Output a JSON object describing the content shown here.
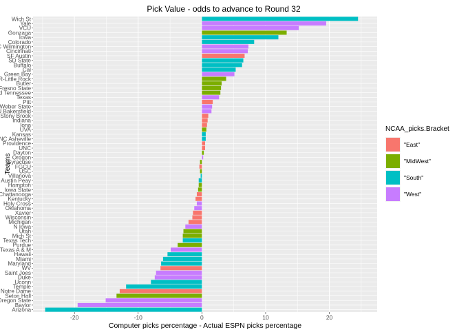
{
  "chart_data": {
    "type": "bar",
    "orientation": "horizontal",
    "title": "Pick Value - odds to advance to Round 32",
    "xlabel": "Computer picks percentage - Actual ESPN picks percentage",
    "ylabel": "Teams",
    "xlim": [
      -26.5,
      27.5
    ],
    "xticks": [
      -20,
      -10,
      0,
      10,
      20
    ],
    "xtick_labels": [
      "-20",
      "-10",
      "0",
      "10",
      "20"
    ],
    "grid": true,
    "legend": {
      "title": "NCAA_picks.Bracket",
      "placement": "right",
      "entries": [
        {
          "key": "East",
          "label": "\"East\"",
          "color": "#F8766D"
        },
        {
          "key": "MidWest",
          "label": "\"MidWest\"",
          "color": "#7CAE00"
        },
        {
          "key": "South",
          "label": "\"South\"",
          "color": "#00BFC4"
        },
        {
          "key": "West",
          "label": "\"West\"",
          "color": "#C77CFF"
        }
      ]
    },
    "bars": [
      {
        "team": "Wich St",
        "value": 24.5,
        "bracket": "South"
      },
      {
        "team": "Yale",
        "value": 19.5,
        "bracket": "West"
      },
      {
        "team": "VCU",
        "value": 15.2,
        "bracket": "West"
      },
      {
        "team": "Gonzaga",
        "value": 13.3,
        "bracket": "MidWest"
      },
      {
        "team": "Iowa",
        "value": 12.0,
        "bracket": "South"
      },
      {
        "team": "Colorado",
        "value": 8.2,
        "bracket": "South"
      },
      {
        "team": "UNC Wilmington",
        "value": 7.3,
        "bracket": "West"
      },
      {
        "team": "Cincinnati",
        "value": 7.2,
        "bracket": "West"
      },
      {
        "team": "SF Austin",
        "value": 6.7,
        "bracket": "East"
      },
      {
        "team": "SD State",
        "value": 6.5,
        "bracket": "South"
      },
      {
        "team": "Buffalo",
        "value": 6.3,
        "bracket": "South"
      },
      {
        "team": "Cal",
        "value": 5.3,
        "bracket": "South"
      },
      {
        "team": "Green Bay",
        "value": 5.1,
        "bracket": "West"
      },
      {
        "team": "AR-Little Rock",
        "value": 3.8,
        "bracket": "MidWest"
      },
      {
        "team": "Butler",
        "value": 3.1,
        "bracket": "MidWest"
      },
      {
        "team": "Fresno State",
        "value": 3.0,
        "bracket": "MidWest"
      },
      {
        "team": "Mid Tennessee",
        "value": 2.9,
        "bracket": "MidWest"
      },
      {
        "team": "Texas",
        "value": 2.7,
        "bracket": "West"
      },
      {
        "team": "Pitt",
        "value": 1.7,
        "bracket": "East"
      },
      {
        "team": "Weber State",
        "value": 1.6,
        "bracket": "West"
      },
      {
        "team": "CSU Bakersfield",
        "value": 1.5,
        "bracket": "West"
      },
      {
        "team": "Stony Brook",
        "value": 1.0,
        "bracket": "East"
      },
      {
        "team": "Indiana",
        "value": 0.9,
        "bracket": "East"
      },
      {
        "team": "Iona",
        "value": 0.8,
        "bracket": "East"
      },
      {
        "team": "UVA",
        "value": 0.7,
        "bracket": "MidWest"
      },
      {
        "team": "Kansas",
        "value": 0.6,
        "bracket": "South"
      },
      {
        "team": "UNC Asheville",
        "value": 0.6,
        "bracket": "South"
      },
      {
        "team": "Providence",
        "value": 0.5,
        "bracket": "East"
      },
      {
        "team": "UNC",
        "value": 0.5,
        "bracket": "East"
      },
      {
        "team": "Dayton",
        "value": 0.3,
        "bracket": "MidWest"
      },
      {
        "team": "Oregon",
        "value": 0.2,
        "bracket": "West"
      },
      {
        "team": "Syracuse",
        "value": -0.3,
        "bracket": "MidWest"
      },
      {
        "team": "FGCU",
        "value": -0.4,
        "bracket": "East"
      },
      {
        "team": "USC",
        "value": -0.3,
        "bracket": "MidWest"
      },
      {
        "team": "Villanova",
        "value": -0.2,
        "bracket": "South"
      },
      {
        "team": "Austin Peay",
        "value": -0.5,
        "bracket": "South"
      },
      {
        "team": "Hampton",
        "value": -0.5,
        "bracket": "MidWest"
      },
      {
        "team": "Iowa State",
        "value": -0.6,
        "bracket": "MidWest"
      },
      {
        "team": "Chattanooga",
        "value": -0.8,
        "bracket": "East"
      },
      {
        "team": "Kentucky",
        "value": -1.0,
        "bracket": "East"
      },
      {
        "team": "Holy Cross",
        "value": -0.8,
        "bracket": "West"
      },
      {
        "team": "Oklahoma",
        "value": -1.2,
        "bracket": "West"
      },
      {
        "team": "Xavier",
        "value": -1.4,
        "bracket": "East"
      },
      {
        "team": "Wisconsin",
        "value": -1.5,
        "bracket": "East"
      },
      {
        "team": "Michigan",
        "value": -2.1,
        "bracket": "East"
      },
      {
        "team": "N Iowa",
        "value": -2.6,
        "bracket": "West"
      },
      {
        "team": "Utah",
        "value": -2.9,
        "bracket": "MidWest"
      },
      {
        "team": "Mich St",
        "value": -3.0,
        "bracket": "MidWest"
      },
      {
        "team": "Texas Tech",
        "value": -3.0,
        "bracket": "South"
      },
      {
        "team": "Purdue",
        "value": -3.8,
        "bracket": "MidWest"
      },
      {
        "team": "Texas A & M",
        "value": -4.9,
        "bracket": "West"
      },
      {
        "team": "Hawaii",
        "value": -5.4,
        "bracket": "South"
      },
      {
        "team": "Miami",
        "value": -6.1,
        "bracket": "South"
      },
      {
        "team": "Maryland",
        "value": -6.4,
        "bracket": "South"
      },
      {
        "team": "WV",
        "value": -6.5,
        "bracket": "East"
      },
      {
        "team": "Saint Joes",
        "value": -7.2,
        "bracket": "West"
      },
      {
        "team": "Duke",
        "value": -7.4,
        "bracket": "West"
      },
      {
        "team": "Uconn",
        "value": -8.0,
        "bracket": "South"
      },
      {
        "team": "Temple",
        "value": -11.9,
        "bracket": "South"
      },
      {
        "team": "Notre Dame",
        "value": -12.9,
        "bracket": "East"
      },
      {
        "team": "Seton Hall",
        "value": -13.4,
        "bracket": "MidWest"
      },
      {
        "team": "Oregon State",
        "value": -15.1,
        "bracket": "West"
      },
      {
        "team": "Baylor",
        "value": -19.5,
        "bracket": "West"
      },
      {
        "team": "Arizona",
        "value": -24.6,
        "bracket": "South"
      }
    ]
  }
}
